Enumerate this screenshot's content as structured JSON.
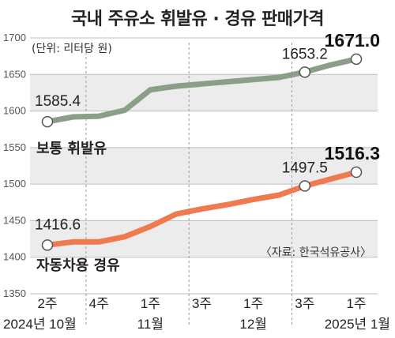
{
  "title": "국내 주유소 휘발유 · 경유 판매가격",
  "unit_note": "(단위: 리터당 원)",
  "source_note": "〈자료: 한국석유공사〉",
  "colors": {
    "gasoline": "#8a9e88",
    "diesel": "#ee7a4e",
    "background": "#ececec"
  },
  "chart_data": {
    "type": "line",
    "x": [
      "2주",
      "",
      "4주",
      "",
      "1주",
      "",
      "3주",
      "",
      "1주",
      "",
      "3주",
      "",
      "1주"
    ],
    "x_groups": [
      {
        "label": "2024년 10월",
        "at": 0
      },
      {
        "label": "11월",
        "at": 4
      },
      {
        "label": "12월",
        "at": 8
      },
      {
        "label": "2025년 1월",
        "at": 12
      }
    ],
    "ylim": [
      1350,
      1700
    ],
    "yticks": [
      1350,
      1400,
      1450,
      1500,
      1550,
      1600,
      1650,
      1700
    ],
    "series": [
      {
        "name": "보통 휘발유",
        "color": "#8a9e88",
        "values": [
          1585.4,
          1592,
          1593,
          1601,
          1629,
          1634,
          1637,
          1640,
          1643,
          1646,
          1653.2,
          1663,
          1671.0
        ],
        "labels": [
          {
            "index": 0,
            "text": "1585.4",
            "emphasis": false
          },
          {
            "index": 10,
            "text": "1653.2",
            "emphasis": false
          },
          {
            "index": 12,
            "text": "1671.0",
            "emphasis": true
          }
        ]
      },
      {
        "name": "자동차용 경유",
        "color": "#ee7a4e",
        "values": [
          1416.6,
          1421,
          1421,
          1428,
          1442,
          1459,
          1466,
          1472,
          1479,
          1485,
          1497.5,
          1507,
          1516.3
        ],
        "labels": [
          {
            "index": 0,
            "text": "1416.6",
            "emphasis": false
          },
          {
            "index": 10,
            "text": "1497.5",
            "emphasis": false
          },
          {
            "index": 12,
            "text": "1516.3",
            "emphasis": true
          }
        ]
      }
    ]
  }
}
